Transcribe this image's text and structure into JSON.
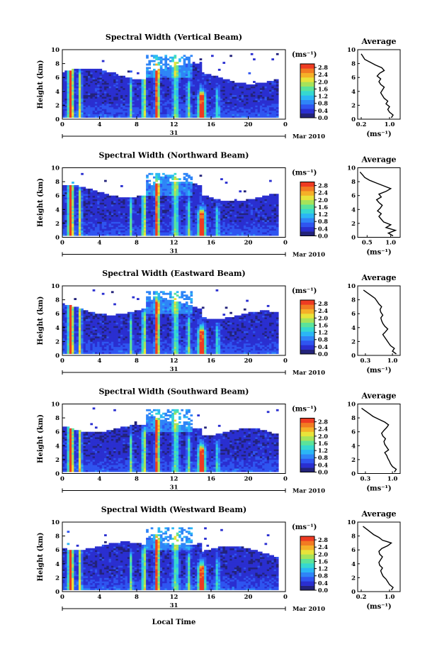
{
  "figure": {
    "xlabel": "Local Time",
    "date_label": "Mar 2010",
    "day_label": "31",
    "unit_label": "(ms⁻¹)",
    "average_title": "Average",
    "average_xlabel": "(ms⁻¹)",
    "ylabel": "Height (km)"
  },
  "chart_data": [
    {
      "type": "heatmap",
      "title": "Spectral Width (Vertical Beam)",
      "xlabel": "",
      "ylabel": "Height (km)",
      "x_ticks": [
        "0",
        "4",
        "8",
        "12",
        "16",
        "20",
        "0"
      ],
      "xlim": [
        0,
        24
      ],
      "y_ticks": [
        "0",
        "2",
        "4",
        "6",
        "8",
        "10"
      ],
      "ylim": [
        0,
        10
      ],
      "colorbar": {
        "label": "(ms⁻¹)",
        "ticks": [
          "0.0",
          "0.4",
          "0.8",
          "1.2",
          "1.6",
          "2.0",
          "2.4",
          "2.8"
        ],
        "range": [
          0.0,
          3.0
        ]
      },
      "average": {
        "title": "Average",
        "xlabel": "(ms⁻¹)",
        "x_ticks": [
          "0.2",
          "1.0"
        ],
        "xlim": [
          0.1,
          1.3
        ],
        "heights": [
          0.2,
          0.6,
          1,
          1.4,
          1.8,
          2.2,
          2.6,
          3,
          3.4,
          3.8,
          4.2,
          4.6,
          5,
          5.4,
          5.8,
          6.2,
          6.6,
          7,
          7.4,
          7.8,
          8.2,
          8.6,
          9,
          9.4
        ],
        "values": [
          1.05,
          1.1,
          1.0,
          0.95,
          1.0,
          0.9,
          0.95,
          0.85,
          0.8,
          0.75,
          0.8,
          0.85,
          0.75,
          0.7,
          0.75,
          0.65,
          0.72,
          0.85,
          0.78,
          0.6,
          0.45,
          0.3,
          0.25,
          0.2
        ]
      }
    },
    {
      "type": "heatmap",
      "title": "Spectral Width (Northward Beam)",
      "xlabel": "",
      "ylabel": "Height (km)",
      "x_ticks": [
        "0",
        "4",
        "8",
        "12",
        "16",
        "20",
        "0"
      ],
      "xlim": [
        0,
        24
      ],
      "y_ticks": [
        "0",
        "2",
        "4",
        "6",
        "8",
        "10"
      ],
      "ylim": [
        0,
        10
      ],
      "colorbar": {
        "label": "(ms⁻¹)",
        "ticks": [
          "0.0",
          "0.4",
          "0.8",
          "1.2",
          "1.6",
          "2.0",
          "2.4",
          "2.8"
        ],
        "range": [
          0.0,
          3.0
        ]
      },
      "average": {
        "title": "Average",
        "xlabel": "(ms⁻¹)",
        "x_ticks": [
          "0.5",
          "1.0"
        ],
        "xlim": [
          0.3,
          1.2
        ],
        "heights": [
          0.2,
          0.6,
          1,
          1.4,
          1.8,
          2.2,
          2.6,
          3,
          3.4,
          3.8,
          4.2,
          4.6,
          5,
          5.4,
          5.8,
          6.2,
          6.6,
          7,
          7.4,
          7.8,
          8.2,
          8.6,
          9,
          9.4
        ],
        "values": [
          1.05,
          0.95,
          1.1,
          0.9,
          1.0,
          0.85,
          0.8,
          0.75,
          0.8,
          0.72,
          0.78,
          0.82,
          0.75,
          0.7,
          0.8,
          0.75,
          0.9,
          1.0,
          0.85,
          0.7,
          0.55,
          0.45,
          0.4,
          0.35
        ]
      }
    },
    {
      "type": "heatmap",
      "title": "Spectral Width (Eastward Beam)",
      "xlabel": "",
      "ylabel": "Height (km)",
      "x_ticks": [
        "0",
        "4",
        "8",
        "12",
        "16",
        "20",
        "0"
      ],
      "xlim": [
        0,
        24
      ],
      "y_ticks": [
        "0",
        "2",
        "4",
        "6",
        "8",
        "10"
      ],
      "ylim": [
        0,
        10
      ],
      "colorbar": {
        "label": "(ms⁻¹)",
        "ticks": [
          "0.0",
          "0.4",
          "0.8",
          "1.2",
          "1.6",
          "2.0",
          "2.4",
          "2.8"
        ],
        "range": [
          0.0,
          3.0
        ]
      },
      "average": {
        "title": "Average",
        "xlabel": "(ms⁻¹)",
        "x_ticks": [
          "0.3",
          "1.0"
        ],
        "xlim": [
          0.1,
          1.2
        ],
        "heights": [
          0.2,
          0.6,
          1,
          1.4,
          1.8,
          2.2,
          2.6,
          3,
          3.4,
          3.8,
          4.2,
          4.6,
          5,
          5.4,
          5.8,
          6.2,
          6.6,
          7,
          7.4,
          7.8,
          8.2,
          8.6,
          9,
          9.4
        ],
        "values": [
          1.1,
          1.0,
          1.05,
          0.95,
          0.9,
          0.85,
          0.8,
          0.75,
          0.82,
          0.88,
          0.8,
          0.75,
          0.72,
          0.7,
          0.75,
          0.7,
          0.68,
          0.72,
          0.65,
          0.6,
          0.55,
          0.45,
          0.35,
          0.25
        ]
      }
    },
    {
      "type": "heatmap",
      "title": "Spectral Width (Southward Beam)",
      "xlabel": "",
      "ylabel": "Height (km)",
      "x_ticks": [
        "0",
        "4",
        "8",
        "12",
        "16",
        "20",
        "0"
      ],
      "xlim": [
        0,
        24
      ],
      "y_ticks": [
        "0",
        "2",
        "4",
        "6",
        "8",
        "10"
      ],
      "ylim": [
        0,
        10
      ],
      "colorbar": {
        "label": "(ms⁻¹)",
        "ticks": [
          "0.0",
          "0.4",
          "0.8",
          "1.2",
          "1.6",
          "2.0",
          "2.4",
          "2.8"
        ],
        "range": [
          0.0,
          3.0
        ]
      },
      "average": {
        "title": "Average",
        "xlabel": "(ms⁻¹)",
        "x_ticks": [
          "0.3",
          "1.0"
        ],
        "xlim": [
          0.1,
          1.2
        ],
        "heights": [
          0.2,
          0.6,
          1,
          1.4,
          1.8,
          2.2,
          2.6,
          3,
          3.4,
          3.8,
          4.2,
          4.6,
          5,
          5.4,
          5.8,
          6.2,
          6.6,
          7,
          7.4,
          7.8,
          8.2,
          8.6,
          9,
          9.4
        ],
        "values": [
          1.05,
          1.1,
          1.0,
          0.95,
          0.92,
          0.88,
          0.85,
          0.8,
          0.9,
          0.85,
          0.8,
          0.78,
          0.82,
          0.75,
          0.72,
          0.78,
          0.85,
          0.9,
          0.8,
          0.65,
          0.5,
          0.4,
          0.3,
          0.2
        ]
      }
    },
    {
      "type": "heatmap",
      "title": "Spectral Width (Westward Beam)",
      "xlabel": "Local Time",
      "ylabel": "Height (km)",
      "x_ticks": [
        "0",
        "4",
        "8",
        "12",
        "16",
        "20",
        "0"
      ],
      "xlim": [
        0,
        24
      ],
      "y_ticks": [
        "0",
        "2",
        "4",
        "6",
        "8",
        "10"
      ],
      "ylim": [
        0,
        10
      ],
      "colorbar": {
        "label": "(ms⁻¹)",
        "ticks": [
          "0.0",
          "0.4",
          "0.8",
          "1.2",
          "1.6",
          "2.0",
          "2.4",
          "2.8"
        ],
        "range": [
          0.0,
          3.0
        ]
      },
      "average": {
        "title": "Average",
        "xlabel": "(ms⁻¹)",
        "x_ticks": [
          "0.2",
          "1.0"
        ],
        "xlim": [
          0.1,
          1.3
        ],
        "heights": [
          0.2,
          0.6,
          1,
          1.4,
          1.8,
          2.2,
          2.6,
          3,
          3.4,
          3.8,
          4.2,
          4.6,
          5,
          5.4,
          5.8,
          6.2,
          6.6,
          7,
          7.4,
          7.8,
          8.2,
          8.6,
          9,
          9.4
        ],
        "values": [
          1.05,
          1.1,
          1.0,
          0.95,
          0.9,
          0.82,
          0.78,
          0.75,
          0.8,
          0.72,
          0.7,
          0.75,
          0.8,
          0.72,
          0.7,
          0.78,
          0.95,
          1.05,
          0.8,
          0.7,
          0.55,
          0.45,
          0.35,
          0.25
        ]
      }
    }
  ]
}
